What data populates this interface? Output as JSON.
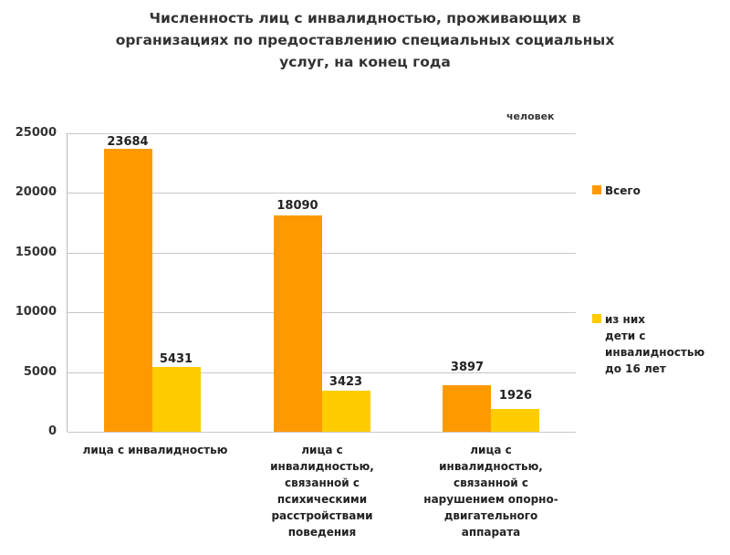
{
  "chart_data": {
    "type": "bar",
    "title": "Численность лиц с инвалидностью, проживающих в организациях по предоставлению специальных социальных услуг, на конец года",
    "title_lines": [
      "Численность лиц с инвалидностью, проживающих в",
      "организациях по предоставлению специальных социальных",
      "услуг,  на конец года"
    ],
    "unit_label": "человек",
    "categories": [
      "лица с инвалидностью",
      "лица с инвалидностью, связанной с психическими расстройствами поведения",
      "лица с инвалидностью, связанной с нарушением опорно-двигательного аппарата"
    ],
    "category_lines": [
      [
        "лица с инвалидностью"
      ],
      [
        "лица с",
        "инвалидностью,",
        "связанной с",
        "психическими",
        "расстройствами",
        "поведения"
      ],
      [
        "лица с",
        "инвалидностью,",
        "связанной с",
        "нарушением опорно-",
        "двигательного",
        "аппарата"
      ]
    ],
    "series": [
      {
        "name": "Всего",
        "color": "#FF9900",
        "values": [
          23684,
          18090,
          3897
        ]
      },
      {
        "name": "из них дети с инвалидностью до 16 лет",
        "color": "#FFCC00",
        "values": [
          5431,
          3423,
          1926
        ]
      }
    ],
    "legend_lines": [
      [
        "Всего"
      ],
      [
        "из них",
        "дети с",
        "инвалидностью",
        "до 16 лет"
      ]
    ],
    "yticks": [
      "0",
      "5000",
      "10000",
      "15000",
      "20000",
      "25000"
    ],
    "ylim": [
      0,
      25000
    ],
    "xlabel": "",
    "ylabel": "",
    "grid": true,
    "legend_position": "right"
  }
}
